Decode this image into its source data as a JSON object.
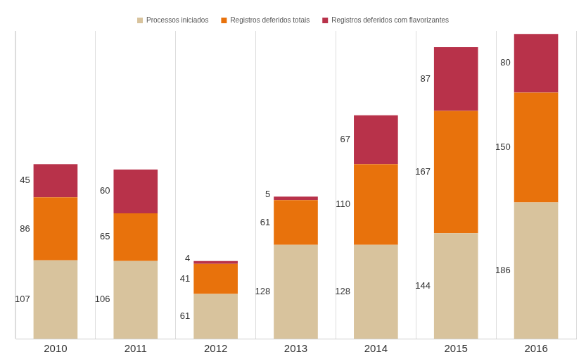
{
  "chart_data": {
    "type": "bar",
    "stacked": true,
    "categories": [
      "2010",
      "2011",
      "2012",
      "2013",
      "2014",
      "2015",
      "2016"
    ],
    "series": [
      {
        "name": "Processos iniciados",
        "color": "#d8c39d",
        "values": [
          107,
          106,
          61,
          128,
          128,
          144,
          186
        ]
      },
      {
        "name": "Registros deferidos totais",
        "color": "#e8720c",
        "values": [
          86,
          65,
          41,
          61,
          110,
          167,
          150
        ]
      },
      {
        "name": "Registros deferidos com flavorizantes",
        "color": "#b8324a",
        "values": [
          45,
          60,
          4,
          5,
          67,
          87,
          80
        ]
      }
    ],
    "ylim": [
      0,
      420
    ],
    "grid": true,
    "legend": "top",
    "data_labels": true,
    "tick_labels": "x"
  }
}
